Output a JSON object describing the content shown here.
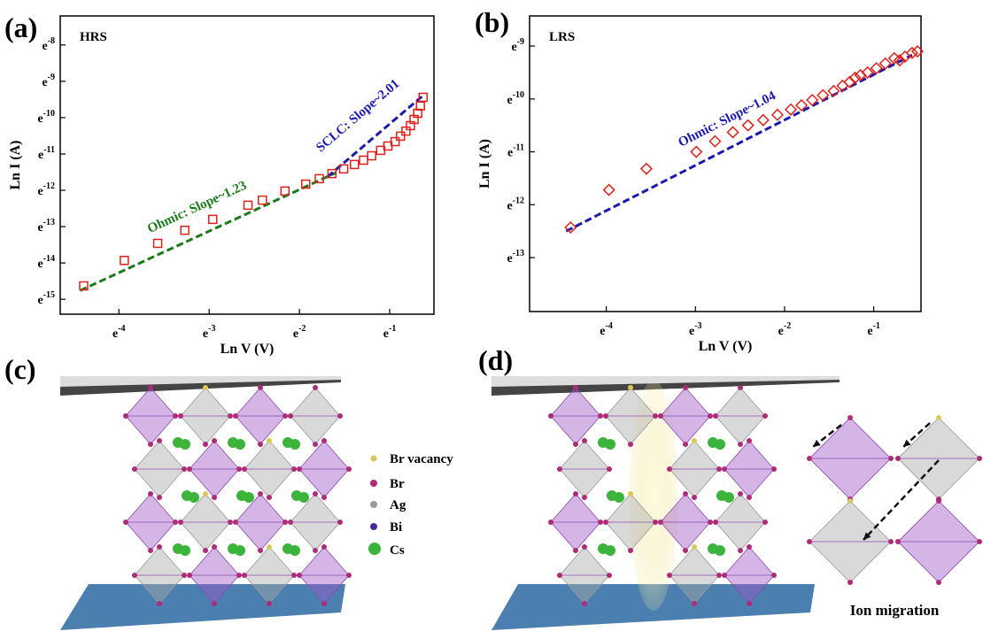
{
  "chart_data": [
    {
      "type": "scatter",
      "panel_label": "(a)",
      "title": "HRS",
      "x_label": "Ln V  (V)",
      "y_label": "Ln I (A)",
      "marker": "square",
      "color": "#e0201b",
      "x": [
        -4.39,
        -3.94,
        -3.57,
        -3.27,
        -2.96,
        -2.57,
        -2.41,
        -2.16,
        -1.93,
        -1.78,
        -1.64,
        -1.51,
        -1.39,
        -1.29,
        -1.2,
        -1.1,
        -1.02,
        -0.94,
        -0.88,
        -0.82,
        -0.77,
        -0.73,
        -0.69,
        -0.66,
        -0.63
      ],
      "values": [
        -14.63,
        -13.93,
        -13.46,
        -13.1,
        -12.8,
        -12.41,
        -12.27,
        -12.02,
        -11.83,
        -11.68,
        -11.54,
        -11.41,
        -11.29,
        -11.17,
        -11.05,
        -10.9,
        -10.78,
        -10.66,
        -10.51,
        -10.37,
        -10.22,
        -10.05,
        -9.88,
        -9.68,
        -9.44
      ],
      "xlim": [
        -4.65,
        -0.51
      ],
      "ylim": [
        -15.41,
        -7.2
      ],
      "xticks": [
        {
          "value": -4,
          "label": "e-4"
        },
        {
          "value": -3,
          "label": "e-3"
        },
        {
          "value": -2,
          "label": "e-2"
        },
        {
          "value": -1,
          "label": "e-1"
        }
      ],
      "yticks": [
        {
          "value": -8,
          "label": "e-8"
        },
        {
          "value": -9,
          "label": "e-9"
        },
        {
          "value": -10,
          "label": "e-10"
        },
        {
          "value": -11,
          "label": "e-11"
        },
        {
          "value": -12,
          "label": "e-12"
        },
        {
          "value": -13,
          "label": "e-13"
        },
        {
          "value": -14,
          "label": "e-14"
        },
        {
          "value": -15,
          "label": "e-15"
        }
      ],
      "fits": [
        {
          "label": "Ohmic: Slope~1.23",
          "color": "#1a7a1a",
          "x": [
            -4.43,
            -1.59
          ],
          "values": [
            -14.76,
            -11.51
          ]
        },
        {
          "label": "SCLC: Slope~2.01",
          "color": "#1a1ab0",
          "x": [
            -1.69,
            -0.63
          ],
          "values": [
            -11.63,
            -9.39
          ]
        }
      ]
    },
    {
      "type": "scatter",
      "panel_label": "(b)",
      "title": "LRS",
      "x_label": "Ln V (V)",
      "y_label": "Ln I (A)",
      "marker": "diamond",
      "color": "#e0201b",
      "x": [
        -4.4,
        -3.97,
        -3.55,
        -2.99,
        -2.78,
        -2.58,
        -2.41,
        -2.24,
        -2.08,
        -1.93,
        -1.81,
        -1.69,
        -1.57,
        -1.45,
        -1.35,
        -1.27,
        -1.21,
        -1.15,
        -1.07,
        -0.97,
        -0.87,
        -0.77,
        -0.71,
        -0.65,
        -0.57,
        -0.51
      ],
      "values": [
        -12.43,
        -11.72,
        -11.32,
        -11.0,
        -10.8,
        -10.63,
        -10.5,
        -10.4,
        -10.3,
        -10.2,
        -10.12,
        -10.02,
        -9.93,
        -9.85,
        -9.75,
        -9.68,
        -9.6,
        -9.55,
        -9.5,
        -9.42,
        -9.33,
        -9.23,
        -9.27,
        -9.2,
        -9.13,
        -9.1
      ],
      "xlim": [
        -4.86,
        -0.47
      ],
      "ylim": [
        -14.02,
        -8.43
      ],
      "xticks": [
        {
          "value": -4,
          "label": "e-4"
        },
        {
          "value": -3,
          "label": "e-3"
        },
        {
          "value": -2,
          "label": "e-2"
        },
        {
          "value": -1,
          "label": "e-1"
        }
      ],
      "yticks": [
        {
          "value": -9,
          "label": "e-9"
        },
        {
          "value": -10,
          "label": "e-10"
        },
        {
          "value": -11,
          "label": "e-11"
        },
        {
          "value": -12,
          "label": "e-12"
        },
        {
          "value": -13,
          "label": "e-13"
        }
      ],
      "fits": [
        {
          "label": "Ohmic: Slope~1.04",
          "color": "#1a1ab0",
          "x": [
            -4.45,
            -0.57
          ],
          "values": [
            -12.5,
            -9.17
          ]
        }
      ]
    }
  ],
  "illustrations": {
    "c": {
      "panel_label": "(c)",
      "legend": [
        "Br vacancy",
        "Br",
        "Ag",
        "Bi",
        "Cs"
      ]
    },
    "d": {
      "panel_label": "(d)",
      "caption": "Ion migration"
    }
  }
}
